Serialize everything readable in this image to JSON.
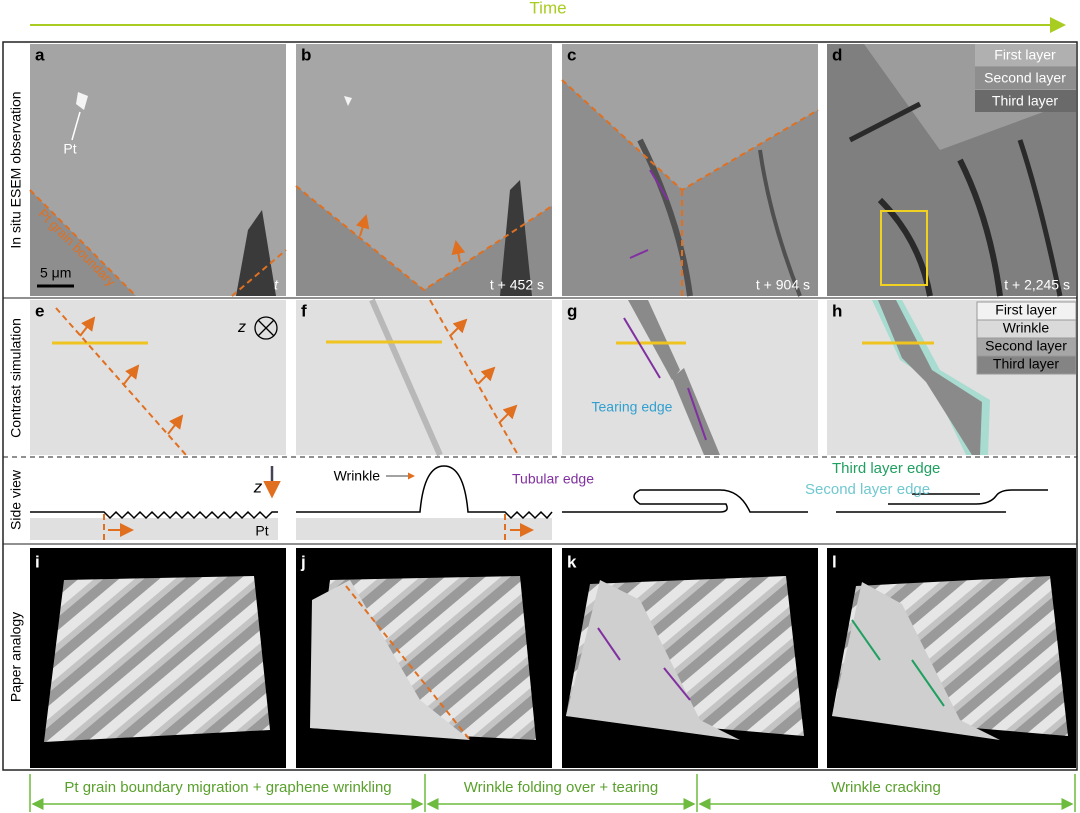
{
  "header": {
    "title": "Time"
  },
  "row_labels": [
    "In situ ESEM observation",
    "Contrast simulation",
    "Side view",
    "Paper analogy"
  ],
  "panels": [
    {
      "letter": "a",
      "texts": [
        "Pt",
        "Pt grain boundary",
        "5 μm",
        "t"
      ]
    },
    {
      "letter": "b",
      "texts": [
        "t + 452 s"
      ]
    },
    {
      "letter": "c",
      "texts": [
        "t + 904 s"
      ]
    },
    {
      "letter": "d",
      "texts": [
        "t + 2,245 s"
      ],
      "legend": [
        "First layer",
        "Second layer",
        "Third layer"
      ]
    },
    {
      "letter": "e",
      "texts": [
        "z"
      ]
    },
    {
      "letter": "f"
    },
    {
      "letter": "g",
      "texts": [
        "Tearing edge"
      ]
    },
    {
      "letter": "h",
      "legend": [
        "First layer",
        "Wrinkle",
        "Second layer",
        "Third layer"
      ]
    },
    {
      "letter": "i"
    },
    {
      "letter": "j"
    },
    {
      "letter": "k"
    },
    {
      "letter": "l"
    }
  ],
  "side_view": {
    "axis": "z",
    "substrate": "Pt",
    "labels": [
      "Wrinkle",
      "Tubular edge",
      "Third layer edge",
      "Second layer edge"
    ]
  },
  "stages": [
    "Pt grain boundary migration + graphene wrinkling",
    "Wrinkle folding over + tearing",
    "Wrinkle cracking"
  ]
}
